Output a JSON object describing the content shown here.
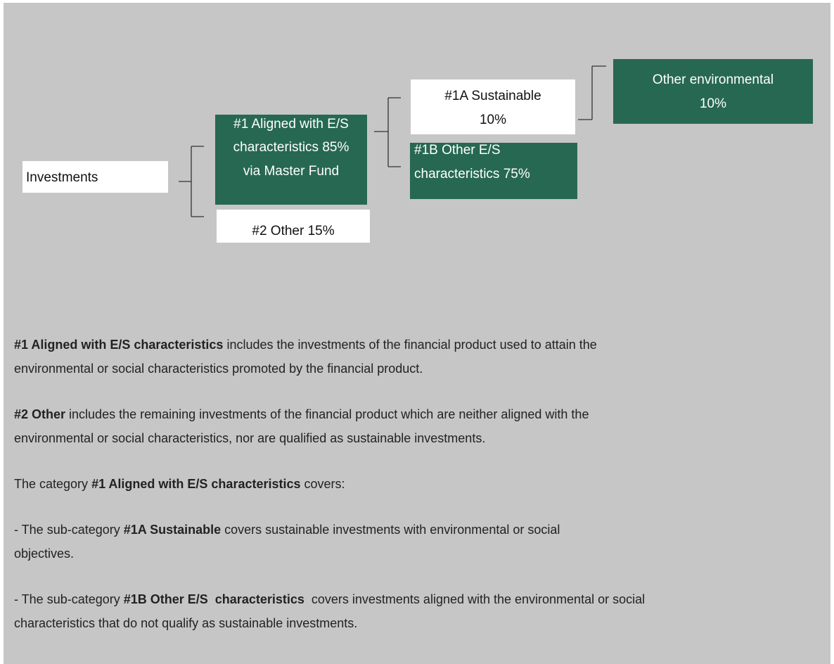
{
  "nodes": [
    {
      "lines": [
        "Investments"
      ]
    },
    {
      "lines": [
        "#1 Aligned with E/S",
        "characteristics 85%",
        "via Master Fund"
      ]
    },
    {
      "lines": [
        "#2 Other 15%"
      ]
    },
    {
      "lines": [
        "#1A Sustainable",
        "10%"
      ]
    },
    {
      "lines": [
        "#1B Other E/S",
        "characteristics 75%"
      ]
    },
    {
      "lines": [
        "Other environmental",
        "10%"
      ]
    }
  ],
  "paragraphs": [
    {
      "lines": [
        [
          {
            "text": "#1 Aligned with E/S characteristics",
            "bold": true
          },
          {
            "text": " includes the investments of the financial product used to attain the",
            "bold": false
          }
        ],
        [
          {
            "text": "environmental or social characteristics promoted by the financial product.",
            "bold": false
          }
        ]
      ]
    },
    {
      "lines": [
        [
          {
            "text": "#2 Other",
            "bold": true
          },
          {
            "text": " includes the remaining investments of the financial product which are neither aligned with the",
            "bold": false
          }
        ],
        [
          {
            "text": "environmental or social characteristics, nor are qualified as sustainable investments.",
            "bold": false
          }
        ]
      ]
    },
    {
      "lines": [
        [
          {
            "text": "The category ",
            "bold": false
          },
          {
            "text": "#1 Aligned with E/S characteristics",
            "bold": true
          },
          {
            "text": " covers:",
            "bold": false
          }
        ]
      ]
    },
    {
      "lines": [
        [
          {
            "text": "- The sub-category ",
            "bold": false
          },
          {
            "text": "#1A Sustainable",
            "bold": true
          },
          {
            "text": " covers sustainable investments with environmental or social",
            "bold": false
          }
        ],
        [
          {
            "text": "objectives.",
            "bold": false
          }
        ]
      ]
    },
    {
      "lines": [
        [
          {
            "text": "- The sub-category ",
            "bold": false
          },
          {
            "text": "#1B Other E/S  characteristics",
            "bold": true
          },
          {
            "text": "  covers investments aligned with the environmental or social",
            "bold": false
          }
        ],
        [
          {
            "text": "characteristics that do not qualify as sustainable investments.",
            "bold": false
          }
        ]
      ]
    }
  ]
}
